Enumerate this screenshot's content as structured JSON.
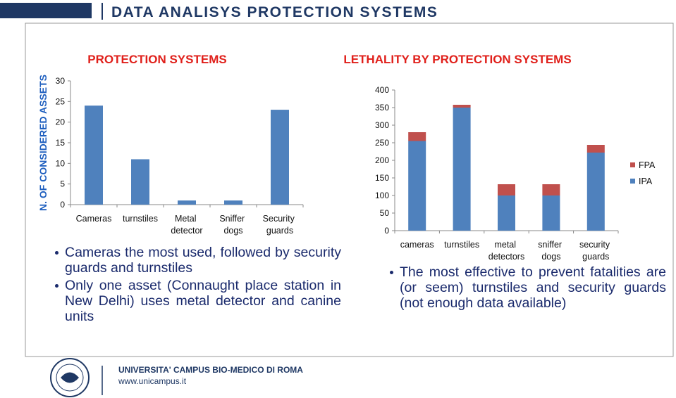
{
  "header": {
    "title": "DATA ANALISYS PROTECTION SYSTEMS"
  },
  "chart_data": [
    {
      "type": "bar",
      "title": "PROTECTION SYSTEMS",
      "y_label": "N. OF CONSIDERED ASSETS",
      "categories": [
        "Cameras",
        "turnstiles",
        "Metal detector",
        "Sniffer dogs",
        "Security guards"
      ],
      "values": [
        24,
        11,
        1,
        1,
        23
      ],
      "color": "#4f81bd",
      "ylim": [
        0,
        30
      ],
      "yticks": [
        0,
        5,
        10,
        15,
        20,
        25,
        30
      ]
    },
    {
      "type": "stacked_bar",
      "title": "LETHALITY BY PROTECTION SYSTEMS",
      "categories": [
        "cameras",
        "turnstiles",
        "metal detectors",
        "sniffer dogs",
        "security guards"
      ],
      "series": [
        {
          "name": "IPA",
          "color": "#4f81bd",
          "values": [
            255,
            350,
            100,
            100,
            222
          ]
        },
        {
          "name": "FPA",
          "color": "#c0504d",
          "values": [
            25,
            8,
            32,
            32,
            22
          ]
        }
      ],
      "ylim": [
        0,
        400
      ],
      "yticks": [
        0,
        50,
        100,
        150,
        200,
        250,
        300,
        350,
        400
      ],
      "legend": "right"
    }
  ],
  "bullets_left": [
    "Cameras the most used, followed by security guards and turnstiles",
    "Only one asset (Connaught place station in New Delhi) uses metal detector and canine units"
  ],
  "bullets_right": [
    "The most effective to prevent fatalities are (or seem) turnstiles and security guards (not enough data available)"
  ],
  "footer": {
    "institution": "UNIVERSITA' CAMPUS BIO-MEDICO DI ROMA",
    "url": "www.unicampus.it"
  }
}
